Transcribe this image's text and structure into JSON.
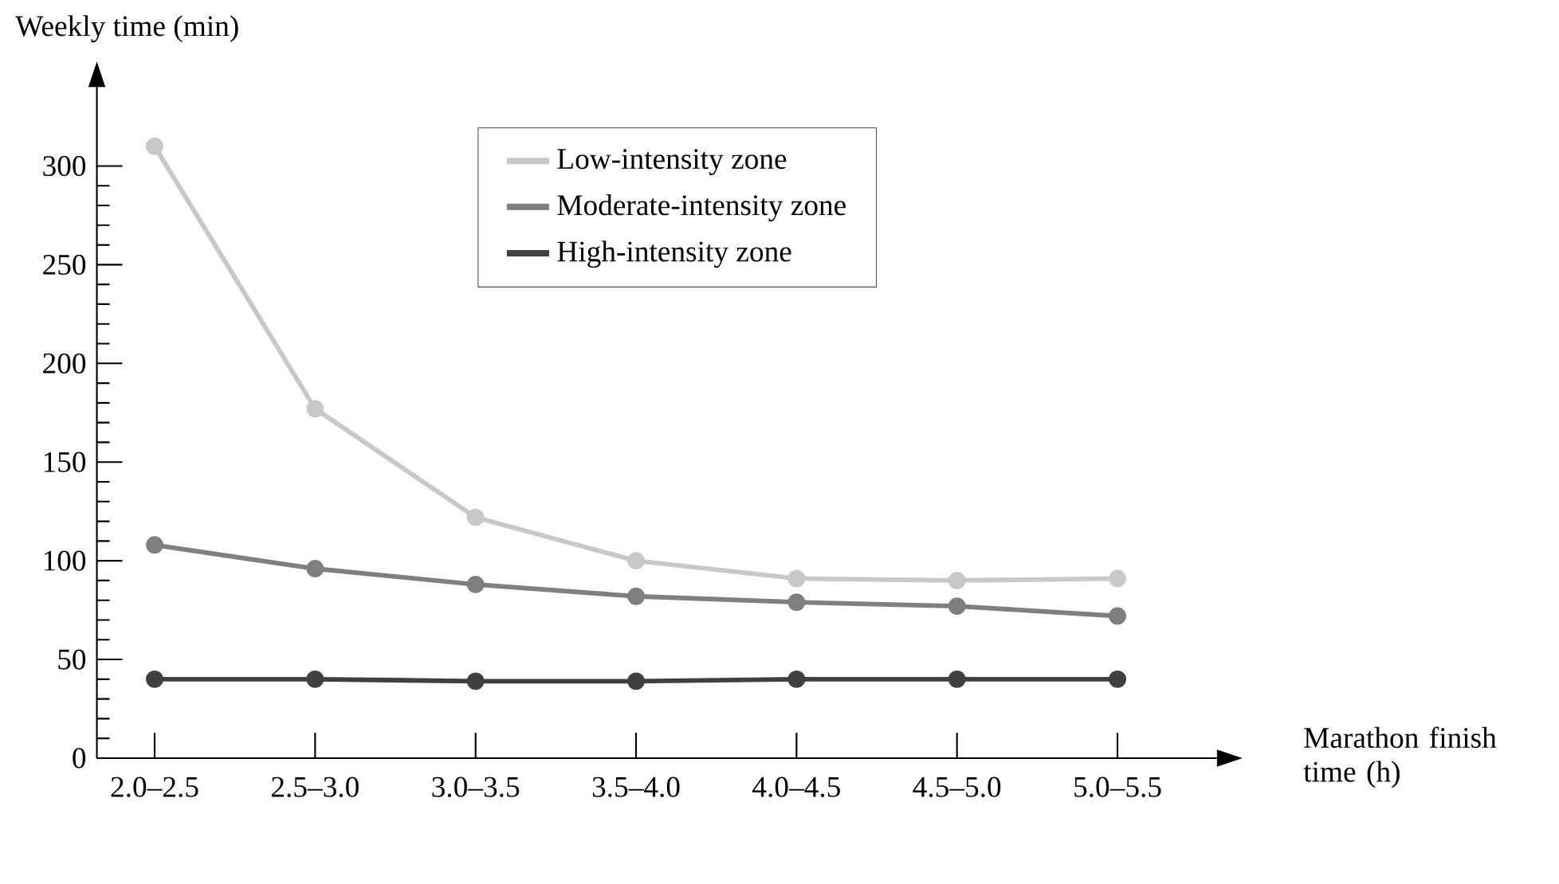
{
  "chart_data": {
    "type": "line",
    "xlabel": "Marathon finish time (h)",
    "ylabel": "Weekly time (min)",
    "categories": [
      "2.0–2.5",
      "2.5–3.0",
      "3.0–3.5",
      "3.5–4.0",
      "4.0–4.5",
      "4.5–5.0",
      "5.0–5.5"
    ],
    "series": [
      {
        "name": "Low-intensity zone",
        "color": "#c8c8c8",
        "values": [
          310,
          177,
          122,
          100,
          91,
          90,
          91
        ]
      },
      {
        "name": "Moderate-intensity zone",
        "color": "#7f7f7f",
        "values": [
          108,
          96,
          88,
          82,
          79,
          77,
          72
        ]
      },
      {
        "name": "High-intensity zone",
        "color": "#404040",
        "values": [
          40,
          40,
          39,
          39,
          40,
          40,
          40
        ]
      }
    ],
    "ylim": [
      0,
      340
    ],
    "yticks": [
      0,
      50,
      100,
      150,
      200,
      250,
      300
    ],
    "grid": false,
    "legend": "top",
    "marker": "circle",
    "line_style": "solid"
  }
}
